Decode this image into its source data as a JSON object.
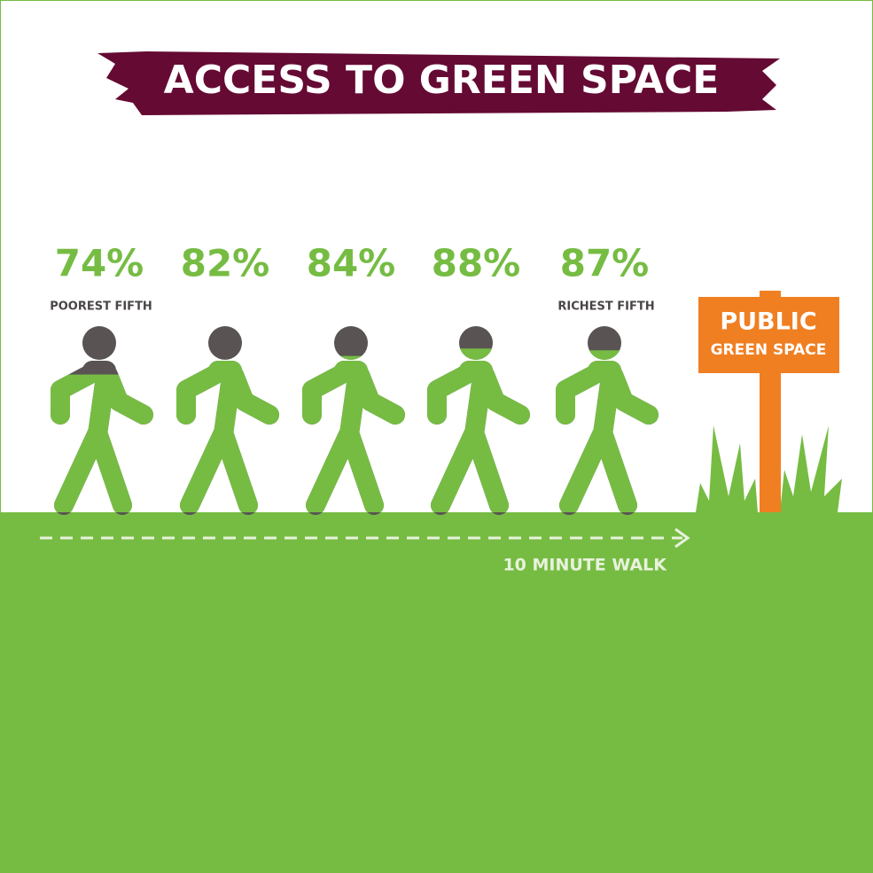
{
  "chart_data": {
    "type": "pictogram",
    "title": "ACCESS TO GREEN SPACE",
    "categories": [
      "POOREST FIFTH",
      null,
      null,
      null,
      "RICHEST FIFTH"
    ],
    "values": [
      74,
      82,
      84,
      88,
      87
    ],
    "value_labels": [
      "74%",
      "82%",
      "84%",
      "88%",
      "87%"
    ],
    "ylim": [
      0,
      100
    ],
    "color": "#76bc43",
    "empty_color": "#595353",
    "sign": [
      "PUBLIC",
      "GREEN SPACE"
    ],
    "annotation": "10 MINUTE WALK"
  }
}
